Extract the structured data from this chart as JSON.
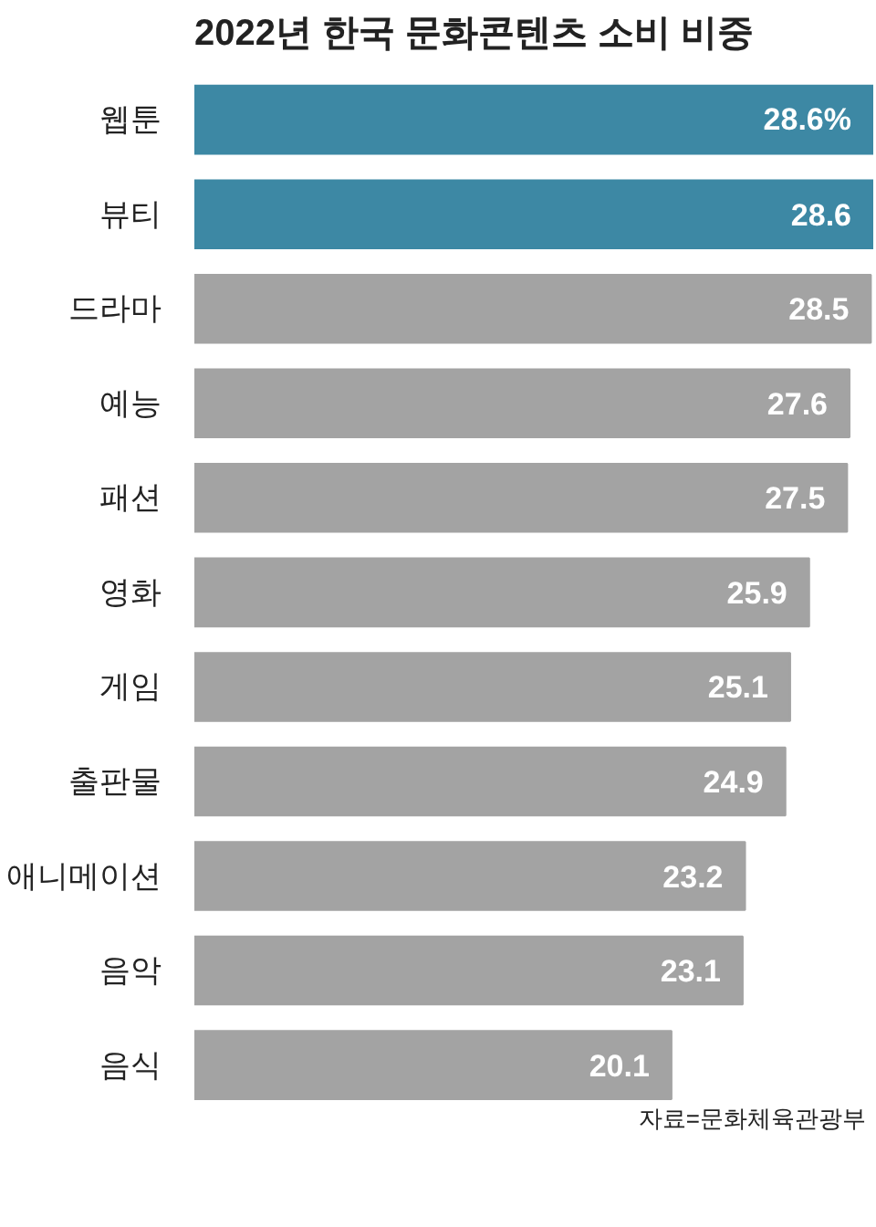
{
  "chart_data": {
    "type": "bar",
    "orientation": "horizontal",
    "title": "2022년 한국 문화콘텐츠 소비 비중",
    "categories": [
      "웹툰",
      "뷰티",
      "드라마",
      "예능",
      "패션",
      "영화",
      "게임",
      "출판물",
      "애니메이션",
      "음악",
      "음식"
    ],
    "values": [
      28.6,
      28.6,
      28.5,
      27.6,
      27.5,
      25.9,
      25.1,
      24.9,
      23.2,
      23.1,
      20.1
    ],
    "colors": [
      "#3d88a4",
      "#3d88a4",
      "#a3a3a3",
      "#a3a3a3",
      "#a3a3a3",
      "#a3a3a3",
      "#a3a3a3",
      "#a3a3a3",
      "#a3a3a3",
      "#a3a3a3",
      "#a3a3a3"
    ],
    "value_labels": [
      "28.6%",
      "28.6",
      "28.5",
      "27.6",
      "27.5",
      "25.9",
      "25.1",
      "24.9",
      "23.2",
      "23.1",
      "20.1"
    ],
    "annotations": [
      "자료=문화체육관광부"
    ],
    "grid": false
  }
}
